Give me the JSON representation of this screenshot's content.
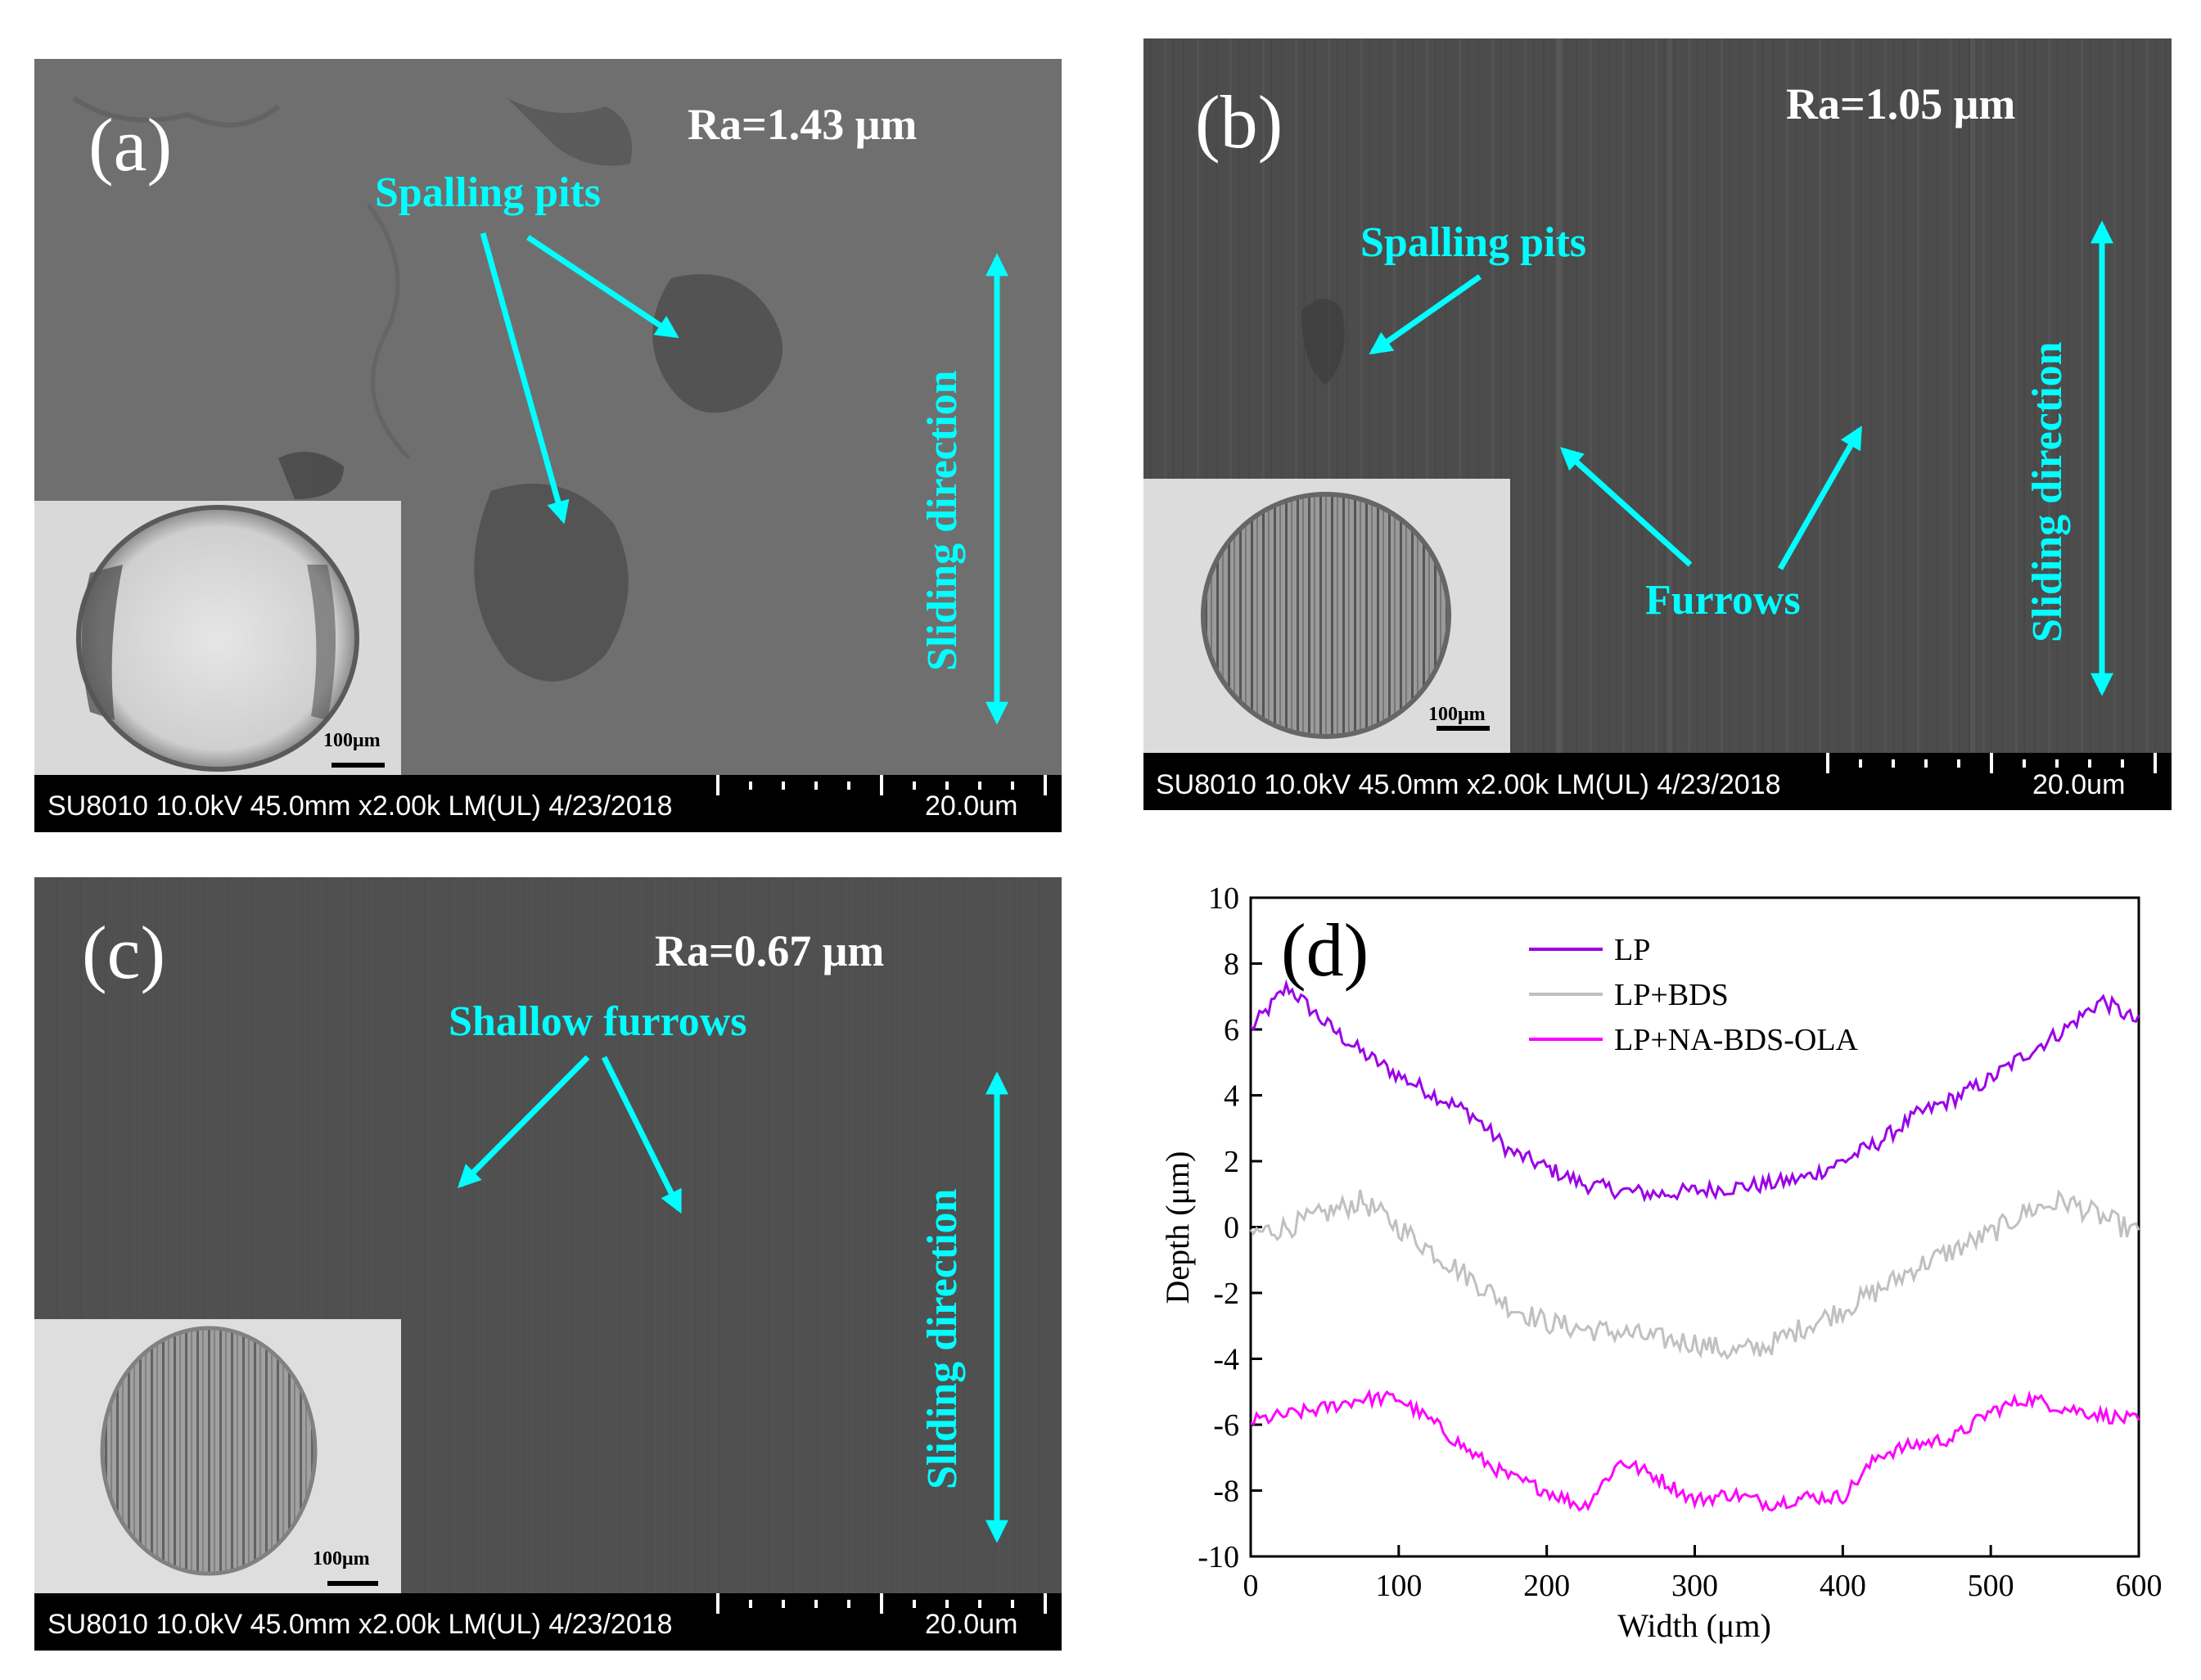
{
  "panels": {
    "a": {
      "label": "(a)",
      "ra": "Ra=1.43 μm",
      "annotation": "Spalling pits",
      "direction": "Sliding direction",
      "scale_inset": "100μm",
      "footer_info": "SU8010 10.0kV 45.0mm x2.00k LM(UL) 4/23/2018",
      "footer_scale": "20.0um"
    },
    "b": {
      "label": "(b)",
      "ra": "Ra=1.05 μm",
      "annotation": "Spalling pits",
      "annotation2": "Furrows",
      "direction": "Sliding direction",
      "scale_inset": "100μm",
      "footer_info": "SU8010 10.0kV 45.0mm x2.00k LM(UL) 4/23/2018",
      "footer_scale": "20.0um"
    },
    "c": {
      "label": "(c)",
      "ra": "Ra=0.67 μm",
      "annotation": "Shallow furrows",
      "direction": "Sliding direction",
      "scale_inset": "100μm",
      "footer_info": "SU8010 10.0kV 45.0mm x2.00k LM(UL) 4/23/2018",
      "footer_scale": "20.0um"
    }
  },
  "chart_data": {
    "type": "line",
    "panel_label": "(d)",
    "xlabel": "Width (μm)",
    "ylabel": "Depth (μm)",
    "xlim": [
      0,
      600
    ],
    "ylim": [
      -10,
      10
    ],
    "xticks": [
      0,
      100,
      200,
      300,
      400,
      500,
      600
    ],
    "yticks": [
      -10,
      -8,
      -6,
      -4,
      -2,
      0,
      2,
      4,
      6,
      8,
      10
    ],
    "x": [
      0,
      25,
      50,
      75,
      100,
      125,
      150,
      175,
      200,
      225,
      250,
      275,
      300,
      325,
      350,
      375,
      400,
      425,
      450,
      475,
      500,
      525,
      550,
      575,
      600
    ],
    "series": [
      {
        "name": "LP",
        "color": "#9b00e8",
        "noise": 0.25,
        "values": [
          6.0,
          7.3,
          6.2,
          5.3,
          4.6,
          4.0,
          3.4,
          2.3,
          1.8,
          1.3,
          1.1,
          1.0,
          1.1,
          1.2,
          1.3,
          1.5,
          2.0,
          2.6,
          3.4,
          3.9,
          4.5,
          5.3,
          6.0,
          6.9,
          6.2
        ]
      },
      {
        "name": "LP+BDS",
        "color": "#c0c0c0",
        "noise": 0.35,
        "values": [
          -0.2,
          0.0,
          0.4,
          0.8,
          0.0,
          -0.8,
          -1.6,
          -2.4,
          -2.9,
          -3.1,
          -3.2,
          -3.4,
          -3.5,
          -3.8,
          -3.6,
          -3.0,
          -2.5,
          -1.9,
          -1.2,
          -0.7,
          -0.2,
          0.5,
          0.8,
          0.3,
          -0.2
        ]
      },
      {
        "name": "LP+NA-BDS-OLA",
        "color": "#ff00ff",
        "noise": 0.22,
        "values": [
          -5.9,
          -5.7,
          -5.5,
          -5.2,
          -5.2,
          -6.0,
          -6.9,
          -7.6,
          -8.0,
          -8.5,
          -7.1,
          -7.6,
          -8.3,
          -8.1,
          -8.4,
          -8.2,
          -8.2,
          -6.9,
          -6.6,
          -6.4,
          -5.6,
          -5.2,
          -5.5,
          -5.7,
          -5.9
        ]
      }
    ]
  },
  "colors": {
    "annotation": "#00ffff",
    "sem_bg": "#555555",
    "footer_bg": "#000000"
  }
}
